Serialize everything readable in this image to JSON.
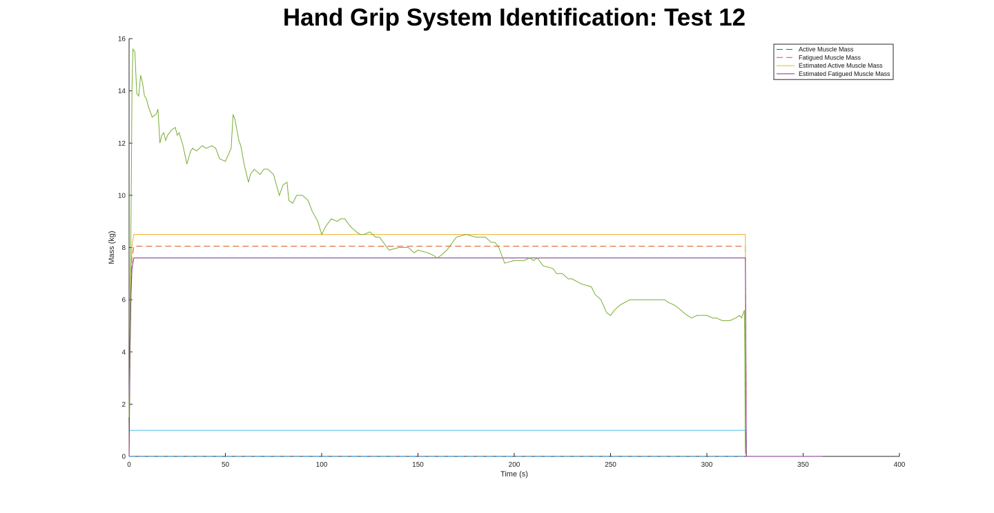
{
  "chart_data": {
    "type": "line",
    "title": "Hand Grip System Identification: Test 12",
    "xlabel": "Time (s)",
    "ylabel": "Mass (kg)",
    "xlim": [
      0,
      400
    ],
    "ylim": [
      0,
      16
    ],
    "xticks": [
      "0",
      "50",
      "100",
      "150",
      "200",
      "250",
      "300",
      "350",
      "400"
    ],
    "yticks": [
      "0",
      "2",
      "4",
      "6",
      "8",
      "10",
      "12",
      "14",
      "16"
    ],
    "grid": false,
    "legend_position": "top-right",
    "colors": {
      "active": "#0072BD",
      "fatigued": "#D95319",
      "estimated_active": "#EDB120",
      "estimated_fatigued": "#7E2F8E",
      "measured": "#77AC30",
      "input": "#4DBEEE"
    },
    "series": [
      {
        "name": "Active Muscle Mass",
        "style": "dashed",
        "color": "#0072BD",
        "x": [
          0,
          320,
          320.5,
          360
        ],
        "y": [
          0,
          0,
          0,
          0
        ]
      },
      {
        "name": "Fatigued Muscle Mass",
        "style": "dashed",
        "color": "#D95319",
        "x": [
          0,
          0.5,
          1.0,
          1.5,
          2.5,
          320,
          320.5,
          360
        ],
        "y": [
          0,
          4.0,
          6.5,
          7.6,
          8.05,
          8.05,
          0,
          0
        ]
      },
      {
        "name": "Estimated Active Muscle Mass",
        "style": "solid",
        "color": "#EDB120",
        "x": [
          0,
          0.5,
          1.0,
          1.5,
          2.5,
          320,
          320.5,
          360
        ],
        "y": [
          0,
          4.2,
          7.0,
          8.1,
          8.5,
          8.5,
          0,
          0
        ]
      },
      {
        "name": "Estimated Fatigued Muscle Mass",
        "style": "solid",
        "color": "#7E2F8E",
        "x": [
          0,
          0.5,
          1.0,
          1.5,
          2.5,
          320,
          320.5,
          360
        ],
        "y": [
          0,
          4.0,
          6.2,
          7.2,
          7.6,
          7.6,
          0,
          0
        ]
      }
    ],
    "unlabeled_series": [
      {
        "style": "solid",
        "color": "#77AC30",
        "x": [
          0,
          0.5,
          1,
          1.5,
          2,
          3,
          4,
          5,
          6,
          7,
          8,
          9,
          10,
          12,
          14,
          15,
          16,
          17,
          18,
          19,
          20,
          22,
          24,
          25,
          26,
          28,
          30,
          32,
          33,
          35,
          38,
          40,
          43,
          45,
          47,
          50,
          53,
          54,
          55,
          57,
          58,
          60,
          62,
          63,
          65,
          68,
          70,
          72,
          75,
          78,
          80,
          82,
          83,
          85,
          87,
          88,
          90,
          93,
          95,
          98,
          100,
          102,
          104,
          105,
          108,
          110,
          112,
          115,
          118,
          120,
          122,
          125,
          128,
          130,
          132,
          135,
          140,
          145,
          148,
          150,
          155,
          158,
          160,
          162,
          165,
          168,
          170,
          175,
          180,
          185,
          188,
          190,
          192,
          195,
          200,
          203,
          205,
          208,
          210,
          212,
          215,
          220,
          222,
          225,
          228,
          230,
          235,
          240,
          242,
          245,
          248,
          250,
          252,
          255,
          260,
          265,
          270,
          275,
          278,
          280,
          283,
          285,
          288,
          290,
          292,
          295,
          298,
          300,
          303,
          305,
          308,
          310,
          312,
          315,
          317,
          318,
          319,
          319.5,
          320
        ],
        "y": [
          1.5,
          5.0,
          9.0,
          14.0,
          15.6,
          15.5,
          13.9,
          13.8,
          14.6,
          14.3,
          13.8,
          13.7,
          13.4,
          13.0,
          13.1,
          13.3,
          12.0,
          12.3,
          12.4,
          12.1,
          12.3,
          12.5,
          12.6,
          12.3,
          12.4,
          11.9,
          11.2,
          11.7,
          11.8,
          11.7,
          11.9,
          11.8,
          11.9,
          11.8,
          11.4,
          11.3,
          11.8,
          13.1,
          12.9,
          12.1,
          11.9,
          11.1,
          10.5,
          10.8,
          11.0,
          10.8,
          11.0,
          11.0,
          10.8,
          10.0,
          10.4,
          10.5,
          9.8,
          9.7,
          10.0,
          10.0,
          10.0,
          9.8,
          9.4,
          9.0,
          8.5,
          8.8,
          9.0,
          9.1,
          9.0,
          9.1,
          9.1,
          8.8,
          8.6,
          8.5,
          8.5,
          8.6,
          8.4,
          8.4,
          8.2,
          7.9,
          8.0,
          8.0,
          7.8,
          7.9,
          7.8,
          7.7,
          7.6,
          7.7,
          7.9,
          8.2,
          8.4,
          8.5,
          8.4,
          8.4,
          8.2,
          8.2,
          8.0,
          7.4,
          7.5,
          7.5,
          7.5,
          7.6,
          7.5,
          7.6,
          7.3,
          7.2,
          7.0,
          7.0,
          6.8,
          6.8,
          6.6,
          6.5,
          6.2,
          6.0,
          5.5,
          5.4,
          5.6,
          5.8,
          6.0,
          6.0,
          6.0,
          6.0,
          6.0,
          5.9,
          5.8,
          5.7,
          5.5,
          5.4,
          5.3,
          5.4,
          5.4,
          5.4,
          5.3,
          5.3,
          5.2,
          5.2,
          5.2,
          5.3,
          5.4,
          5.3,
          5.5,
          5.6,
          0.1
        ]
      },
      {
        "style": "solid",
        "color": "#4DBEEE",
        "x": [
          0,
          320,
          320.5,
          360
        ],
        "y": [
          1.0,
          1.0,
          0,
          0
        ]
      }
    ]
  }
}
